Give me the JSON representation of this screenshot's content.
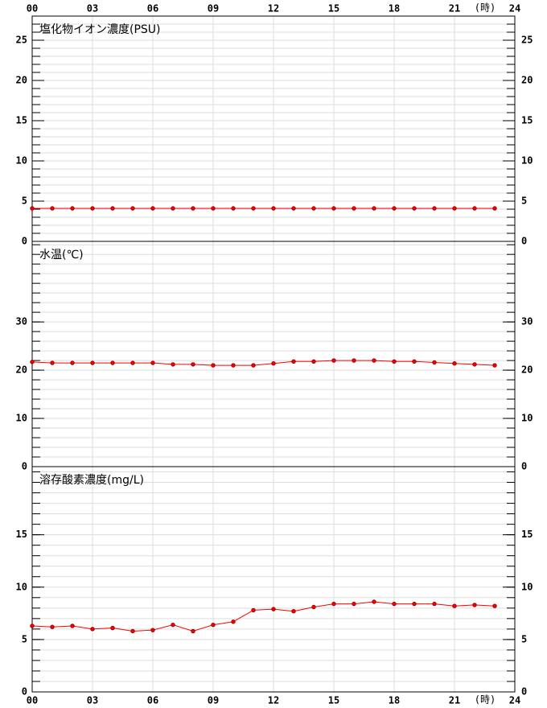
{
  "chart_data": [
    {
      "type": "line",
      "title": "塩化物イオン濃度(PSU)",
      "xlabel": "(時)",
      "x": [
        0,
        1,
        2,
        3,
        4,
        5,
        6,
        7,
        8,
        9,
        10,
        11,
        12,
        13,
        14,
        15,
        16,
        17,
        18,
        19,
        20,
        21,
        22,
        23
      ],
      "xlim": [
        0,
        24
      ],
      "xticks": [
        {
          "value": 0,
          "label": "00"
        },
        {
          "value": 3,
          "label": "03"
        },
        {
          "value": 6,
          "label": "06"
        },
        {
          "value": 9,
          "label": "09"
        },
        12,
        15,
        18,
        21,
        24
      ],
      "ylim": [
        0,
        28
      ],
      "yticks": [
        0,
        5,
        10,
        15,
        20,
        25
      ],
      "series": [
        {
          "color": "#ff0000",
          "values": [
            4.1,
            4.1,
            4.1,
            4.1,
            4.1,
            4.1,
            4.1,
            4.1,
            4.1,
            4.1,
            4.1,
            4.1,
            4.1,
            4.1,
            4.1,
            4.1,
            4.1,
            4.1,
            4.1,
            4.1,
            4.1,
            4.1,
            4.1,
            4.1
          ]
        }
      ]
    },
    {
      "type": "line",
      "title": "水温(℃)",
      "x": [
        0,
        1,
        2,
        3,
        4,
        5,
        6,
        7,
        8,
        9,
        10,
        11,
        12,
        13,
        14,
        15,
        16,
        17,
        18,
        19,
        20,
        21,
        22,
        23
      ],
      "xlim": [
        0,
        24
      ],
      "xticks": [
        {
          "value": 0,
          "label": "00"
        },
        {
          "value": 3,
          "label": "03"
        },
        {
          "value": 6,
          "label": "06"
        },
        {
          "value": 9,
          "label": "09"
        },
        12,
        15,
        18,
        21,
        24
      ],
      "ylim": [
        0,
        46.7
      ],
      "yticks": [
        0,
        10,
        20,
        30
      ],
      "series": [
        {
          "color": "#ff0000",
          "values": [
            21.7,
            21.5,
            21.5,
            21.5,
            21.5,
            21.5,
            21.5,
            21.2,
            21.2,
            21.0,
            21.0,
            21.0,
            21.4,
            21.8,
            21.8,
            22.0,
            22.0,
            22.0,
            21.8,
            21.8,
            21.6,
            21.4,
            21.2,
            21.0
          ]
        }
      ]
    },
    {
      "type": "line",
      "title": "溶存酸素濃度(mg/L)",
      "xlabel": "(時)",
      "x": [
        0,
        1,
        2,
        3,
        4,
        5,
        6,
        7,
        8,
        9,
        10,
        11,
        12,
        13,
        14,
        15,
        16,
        17,
        18,
        19,
        20,
        21,
        22,
        23
      ],
      "xlim": [
        0,
        24
      ],
      "xticks": [
        {
          "value": 0,
          "label": "00"
        },
        {
          "value": 3,
          "label": "03"
        },
        {
          "value": 6,
          "label": "06"
        },
        {
          "value": 9,
          "label": "09"
        },
        12,
        15,
        18,
        21,
        24
      ],
      "ylim": [
        0,
        21.5
      ],
      "yticks": [
        0,
        5,
        10,
        15
      ],
      "series": [
        {
          "color": "#ff0000",
          "values": [
            6.3,
            6.2,
            6.3,
            6.0,
            6.1,
            5.8,
            5.9,
            6.4,
            5.8,
            6.4,
            6.7,
            7.8,
            7.9,
            7.7,
            8.1,
            8.4,
            8.4,
            8.6,
            8.4,
            8.4,
            8.4,
            8.2,
            8.3,
            8.2
          ]
        }
      ]
    }
  ]
}
